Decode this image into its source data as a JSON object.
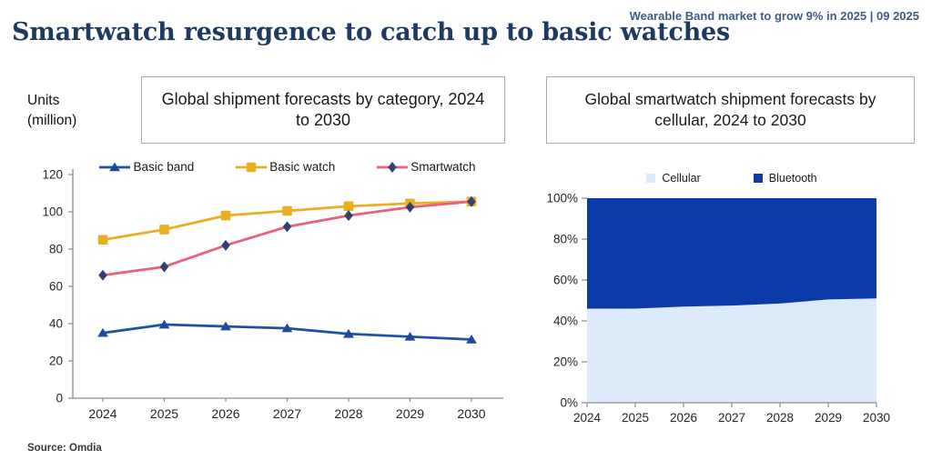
{
  "page": {
    "top_note": "Wearable Band market to grow 9% in 2025 | 09 2025",
    "title": "Smartwatch resurgence to catch up to basic watches",
    "source": "Source: Omdia"
  },
  "colors": {
    "title_navy": "#1E3A5F",
    "note_blue": "#3F5C84",
    "source_gray": "#3A3A3A",
    "axis_gray": "#8C8C8C",
    "tick_label": "#262626"
  },
  "chart_data": [
    {
      "type": "line",
      "title": "Global shipment forecasts by category, 2024 to 2030",
      "ylabel": "Units (million)",
      "xlabel": "",
      "categories": [
        "2024",
        "2025",
        "2026",
        "2027",
        "2028",
        "2029",
        "2030"
      ],
      "series": [
        {
          "name": "Basic band",
          "marker": "triangle",
          "color": "#2052A2",
          "marker_color": "#1C4AA0",
          "values": [
            35,
            39.5,
            38.5,
            37.5,
            34.5,
            33,
            31.5
          ]
        },
        {
          "name": "Basic watch",
          "marker": "square",
          "color": "#EAAF21",
          "marker_color": "#EAAF21",
          "values": [
            85,
            90.5,
            98,
            100.5,
            103,
            104.5,
            105.5
          ]
        },
        {
          "name": "Smartwatch",
          "marker": "diamond",
          "color": "#EC5F7E",
          "marker_color": "#2E4372",
          "values": [
            66,
            70.5,
            82,
            92,
            98,
            102.5,
            105.5
          ]
        }
      ],
      "ylim": [
        0,
        120
      ],
      "yticks": [
        0,
        20,
        40,
        60,
        80,
        100,
        120
      ],
      "ytick_suffix": "",
      "grid": false,
      "legend_position": "top"
    },
    {
      "type": "area",
      "title": "Global smartwatch shipment forecasts by cellular, 2024 to 2030",
      "ylabel": "",
      "xlabel": "",
      "categories": [
        "2024",
        "2025",
        "2026",
        "2027",
        "2028",
        "2029",
        "2030"
      ],
      "stacked_percent": true,
      "series": [
        {
          "name": "Cellular",
          "color": "#DCEAF9",
          "values": [
            46,
            46,
            47,
            47.5,
            48.5,
            50.5,
            51
          ]
        },
        {
          "name": "Bluetooth",
          "color": "#0C3AA6",
          "values": [
            54,
            54,
            53,
            52.5,
            51.5,
            49.5,
            49
          ]
        }
      ],
      "ylim": [
        0,
        100
      ],
      "yticks": [
        0,
        20,
        40,
        60,
        80,
        100
      ],
      "ytick_suffix": "%",
      "grid": false,
      "legend_position": "top"
    }
  ]
}
